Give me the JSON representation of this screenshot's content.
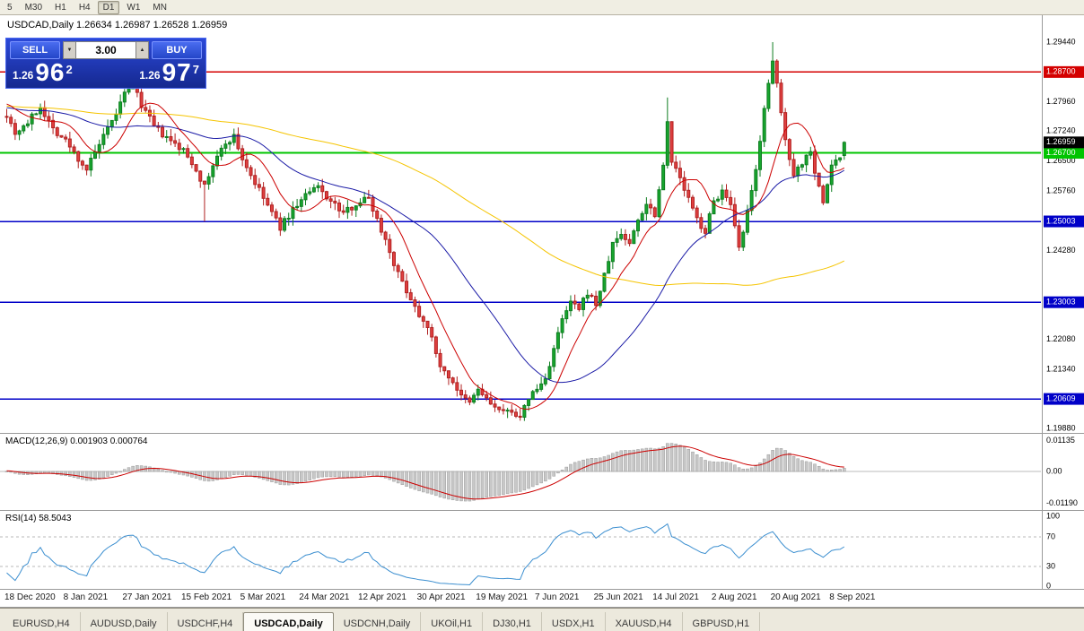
{
  "toolbar": {
    "periods": [
      {
        "label": "5",
        "active": false
      },
      {
        "label": "M30",
        "active": false
      },
      {
        "label": "H1",
        "active": false
      },
      {
        "label": "H4",
        "active": false
      },
      {
        "label": "D1",
        "active": true
      },
      {
        "label": "W1",
        "active": false
      },
      {
        "label": "MN",
        "active": false
      }
    ]
  },
  "header": {
    "symbol": "USDCAD,Daily",
    "open": "1.26634",
    "high": "1.26987",
    "low": "1.26528",
    "close": "1.26959",
    "display": "USDCAD,Daily 1.26634 1.26987 1.26528 1.26959"
  },
  "trade_panel": {
    "sell_label": "SELL",
    "buy_label": "BUY",
    "volume": "3.00",
    "down_glyph": "▼",
    "up_glyph": "▲",
    "sell_price": {
      "prefix": "1.26",
      "big": "96",
      "sup": "2"
    },
    "buy_price": {
      "prefix": "1.26",
      "big": "97",
      "sup": "7"
    }
  },
  "chart_data": {
    "type": "candlestick",
    "symbol": "USDCAD",
    "timeframe": "Daily",
    "ohlc_current": {
      "open": 1.26634,
      "high": 1.26987,
      "low": 1.26528,
      "close": 1.26959
    },
    "candle_count": 200,
    "colors": {
      "bull_fill": "#17a62e",
      "bull_stroke": "#0e7d20",
      "bear_fill": "#e04040",
      "bear_stroke": "#b02020",
      "ma_fast": "#cc0000",
      "ma_mid": "#1a1aa6",
      "ma_slow": "#f5c400"
    },
    "y_axis": {
      "decimals": 5,
      "ticks": [
        1.2944,
        1.2796,
        1.2724,
        1.265,
        1.2576,
        1.2428,
        1.2208,
        1.2134,
        1.1988
      ]
    },
    "price_badges": [
      {
        "price": 1.287,
        "text": "1.28700",
        "color": "#d40000",
        "line": true,
        "line_width": 1.5
      },
      {
        "price": 1.267,
        "text": "1.26700",
        "color": "#00c400",
        "line": true,
        "line_width": 2
      },
      {
        "price": 1.25003,
        "text": "1.25003",
        "color": "#0000c8",
        "line": true,
        "line_width": 1.5
      },
      {
        "price": 1.23003,
        "text": "1.23003",
        "color": "#0000c8",
        "line": true,
        "line_width": 1.5
      },
      {
        "price": 1.20609,
        "text": "1.20609",
        "color": "#0000c8",
        "line": true,
        "line_width": 1.5
      },
      {
        "price": 1.26959,
        "text": "1.26959",
        "color": "#000000",
        "line": false,
        "line_width": 0
      }
    ],
    "x_labels": [
      {
        "text": "18 Dec 2020",
        "i": 0
      },
      {
        "text": "8 Jan 2021",
        "i": 14
      },
      {
        "text": "27 Jan 2021",
        "i": 28
      },
      {
        "text": "15 Feb 2021",
        "i": 42
      },
      {
        "text": "5 Mar 2021",
        "i": 56
      },
      {
        "text": "24 Mar 2021",
        "i": 70
      },
      {
        "text": "12 Apr 2021",
        "i": 84
      },
      {
        "text": "30 Apr 2021",
        "i": 98
      },
      {
        "text": "19 May 2021",
        "i": 112
      },
      {
        "text": "7 Jun 2021",
        "i": 126
      },
      {
        "text": "25 Jun 2021",
        "i": 140
      },
      {
        "text": "14 Jul 2021",
        "i": 154
      },
      {
        "text": "2 Aug 2021",
        "i": 168
      },
      {
        "text": "20 Aug 2021",
        "i": 182
      },
      {
        "text": "8 Sep 2021",
        "i": 196
      }
    ],
    "close_path": [
      [
        0,
        1.2765
      ],
      [
        2,
        1.272
      ],
      [
        5,
        1.2745
      ],
      [
        8,
        1.2785
      ],
      [
        11,
        1.273
      ],
      [
        14,
        1.27
      ],
      [
        17,
        1.2655
      ],
      [
        19,
        1.263
      ],
      [
        22,
        1.269
      ],
      [
        25,
        1.2745
      ],
      [
        28,
        1.2815
      ],
      [
        30,
        1.2835
      ],
      [
        32,
        1.279
      ],
      [
        35,
        1.2735
      ],
      [
        38,
        1.2705
      ],
      [
        42,
        1.2675
      ],
      [
        45,
        1.263
      ],
      [
        47,
        1.2585
      ],
      [
        49,
        1.264
      ],
      [
        52,
        1.2695
      ],
      [
        54,
        1.271
      ],
      [
        56,
        1.2655
      ],
      [
        59,
        1.2595
      ],
      [
        62,
        1.254
      ],
      [
        65,
        1.2485
      ],
      [
        68,
        1.253
      ],
      [
        71,
        1.2565
      ],
      [
        74,
        1.2585
      ],
      [
        77,
        1.255
      ],
      [
        80,
        1.252
      ],
      [
        83,
        1.2545
      ],
      [
        86,
        1.256
      ],
      [
        88,
        1.2505
      ],
      [
        90,
        1.2455
      ],
      [
        93,
        1.237
      ],
      [
        96,
        1.231
      ],
      [
        98,
        1.227
      ],
      [
        100,
        1.2245
      ],
      [
        102,
        1.217
      ],
      [
        104,
        1.2125
      ],
      [
        106,
        1.2105
      ],
      [
        108,
        1.2065
      ],
      [
        110,
        1.205
      ],
      [
        112,
        1.2085
      ],
      [
        114,
        1.206
      ],
      [
        116,
        1.204
      ],
      [
        118,
        1.2025
      ],
      [
        120,
        1.2035
      ],
      [
        122,
        1.201
      ],
      [
        124,
        1.2065
      ],
      [
        126,
        1.2085
      ],
      [
        128,
        1.211
      ],
      [
        130,
        1.2185
      ],
      [
        132,
        1.2255
      ],
      [
        134,
        1.23
      ],
      [
        136,
        1.228
      ],
      [
        138,
        1.2325
      ],
      [
        140,
        1.2295
      ],
      [
        142,
        1.2365
      ],
      [
        144,
        1.2445
      ],
      [
        146,
        1.247
      ],
      [
        148,
        1.2445
      ],
      [
        150,
        1.2505
      ],
      [
        152,
        1.2545
      ],
      [
        154,
        1.252
      ],
      [
        156,
        1.264
      ],
      [
        157,
        1.2755
      ],
      [
        158,
        1.265
      ],
      [
        160,
        1.2605
      ],
      [
        162,
        1.2555
      ],
      [
        164,
        1.2505
      ],
      [
        166,
        1.2475
      ],
      [
        168,
        1.255
      ],
      [
        170,
        1.2575
      ],
      [
        172,
        1.2535
      ],
      [
        174,
        1.243
      ],
      [
        176,
        1.252
      ],
      [
        178,
        1.2625
      ],
      [
        180,
        1.2785
      ],
      [
        182,
        1.289
      ],
      [
        183,
        1.284
      ],
      [
        185,
        1.27
      ],
      [
        187,
        1.262
      ],
      [
        189,
        1.2645
      ],
      [
        191,
        1.268
      ],
      [
        192,
        1.2625
      ],
      [
        194,
        1.2545
      ],
      [
        196,
        1.264
      ],
      [
        198,
        1.266
      ],
      [
        199,
        1.26959
      ]
    ],
    "wick_overrides": [
      {
        "i": 47,
        "low": 1.25
      },
      {
        "i": 122,
        "low": 1.2007
      },
      {
        "i": 157,
        "high": 1.2807
      },
      {
        "i": 182,
        "high": 1.2944
      }
    ],
    "moving_averages": [
      {
        "period": 10,
        "color_key": "ma_fast"
      },
      {
        "period": 34,
        "color_key": "ma_mid"
      },
      {
        "period": 98,
        "color_key": "ma_slow"
      }
    ],
    "indicators": {
      "macd": {
        "label": "MACD(12,26,9) 0.001903 0.000764",
        "fast": 12,
        "slow": 26,
        "signal": 9,
        "value": 0.001903,
        "signal_value": 0.000764,
        "axis": [
          {
            "v": 0.01135,
            "text": "0.01135"
          },
          {
            "v": 0,
            "text": "0.00"
          },
          {
            "v": -0.0119,
            "text": "-0.01190"
          }
        ],
        "histogram_fill": "#c8c8c8",
        "histogram_stroke": "#9a9a9a",
        "signal_color": "#cc0000"
      },
      "rsi": {
        "label": "RSI(14) 58.5043",
        "period": 14,
        "value": 58.5043,
        "axis": [
          {
            "v": 100,
            "text": "100"
          },
          {
            "v": 70,
            "text": "70"
          },
          {
            "v": 30,
            "text": "30"
          },
          {
            "v": 0,
            "text": "0"
          }
        ],
        "levels": [
          70,
          30
        ],
        "color": "#3c8fd0"
      }
    }
  },
  "tab_bar": {
    "tabs": [
      {
        "label": "EURUSD,H4",
        "active": false
      },
      {
        "label": "AUDUSD,Daily",
        "active": false
      },
      {
        "label": "USDCHF,H4",
        "active": false
      },
      {
        "label": "USDCAD,Daily",
        "active": true
      },
      {
        "label": "USDCNH,Daily",
        "active": false
      },
      {
        "label": "UKOil,H1",
        "active": false
      },
      {
        "label": "DJ30,H1",
        "active": false
      },
      {
        "label": "USDX,H1",
        "active": false
      },
      {
        "label": "XAUUSD,H4",
        "active": false
      },
      {
        "label": "GBPUSD,H1",
        "active": false
      }
    ]
  }
}
